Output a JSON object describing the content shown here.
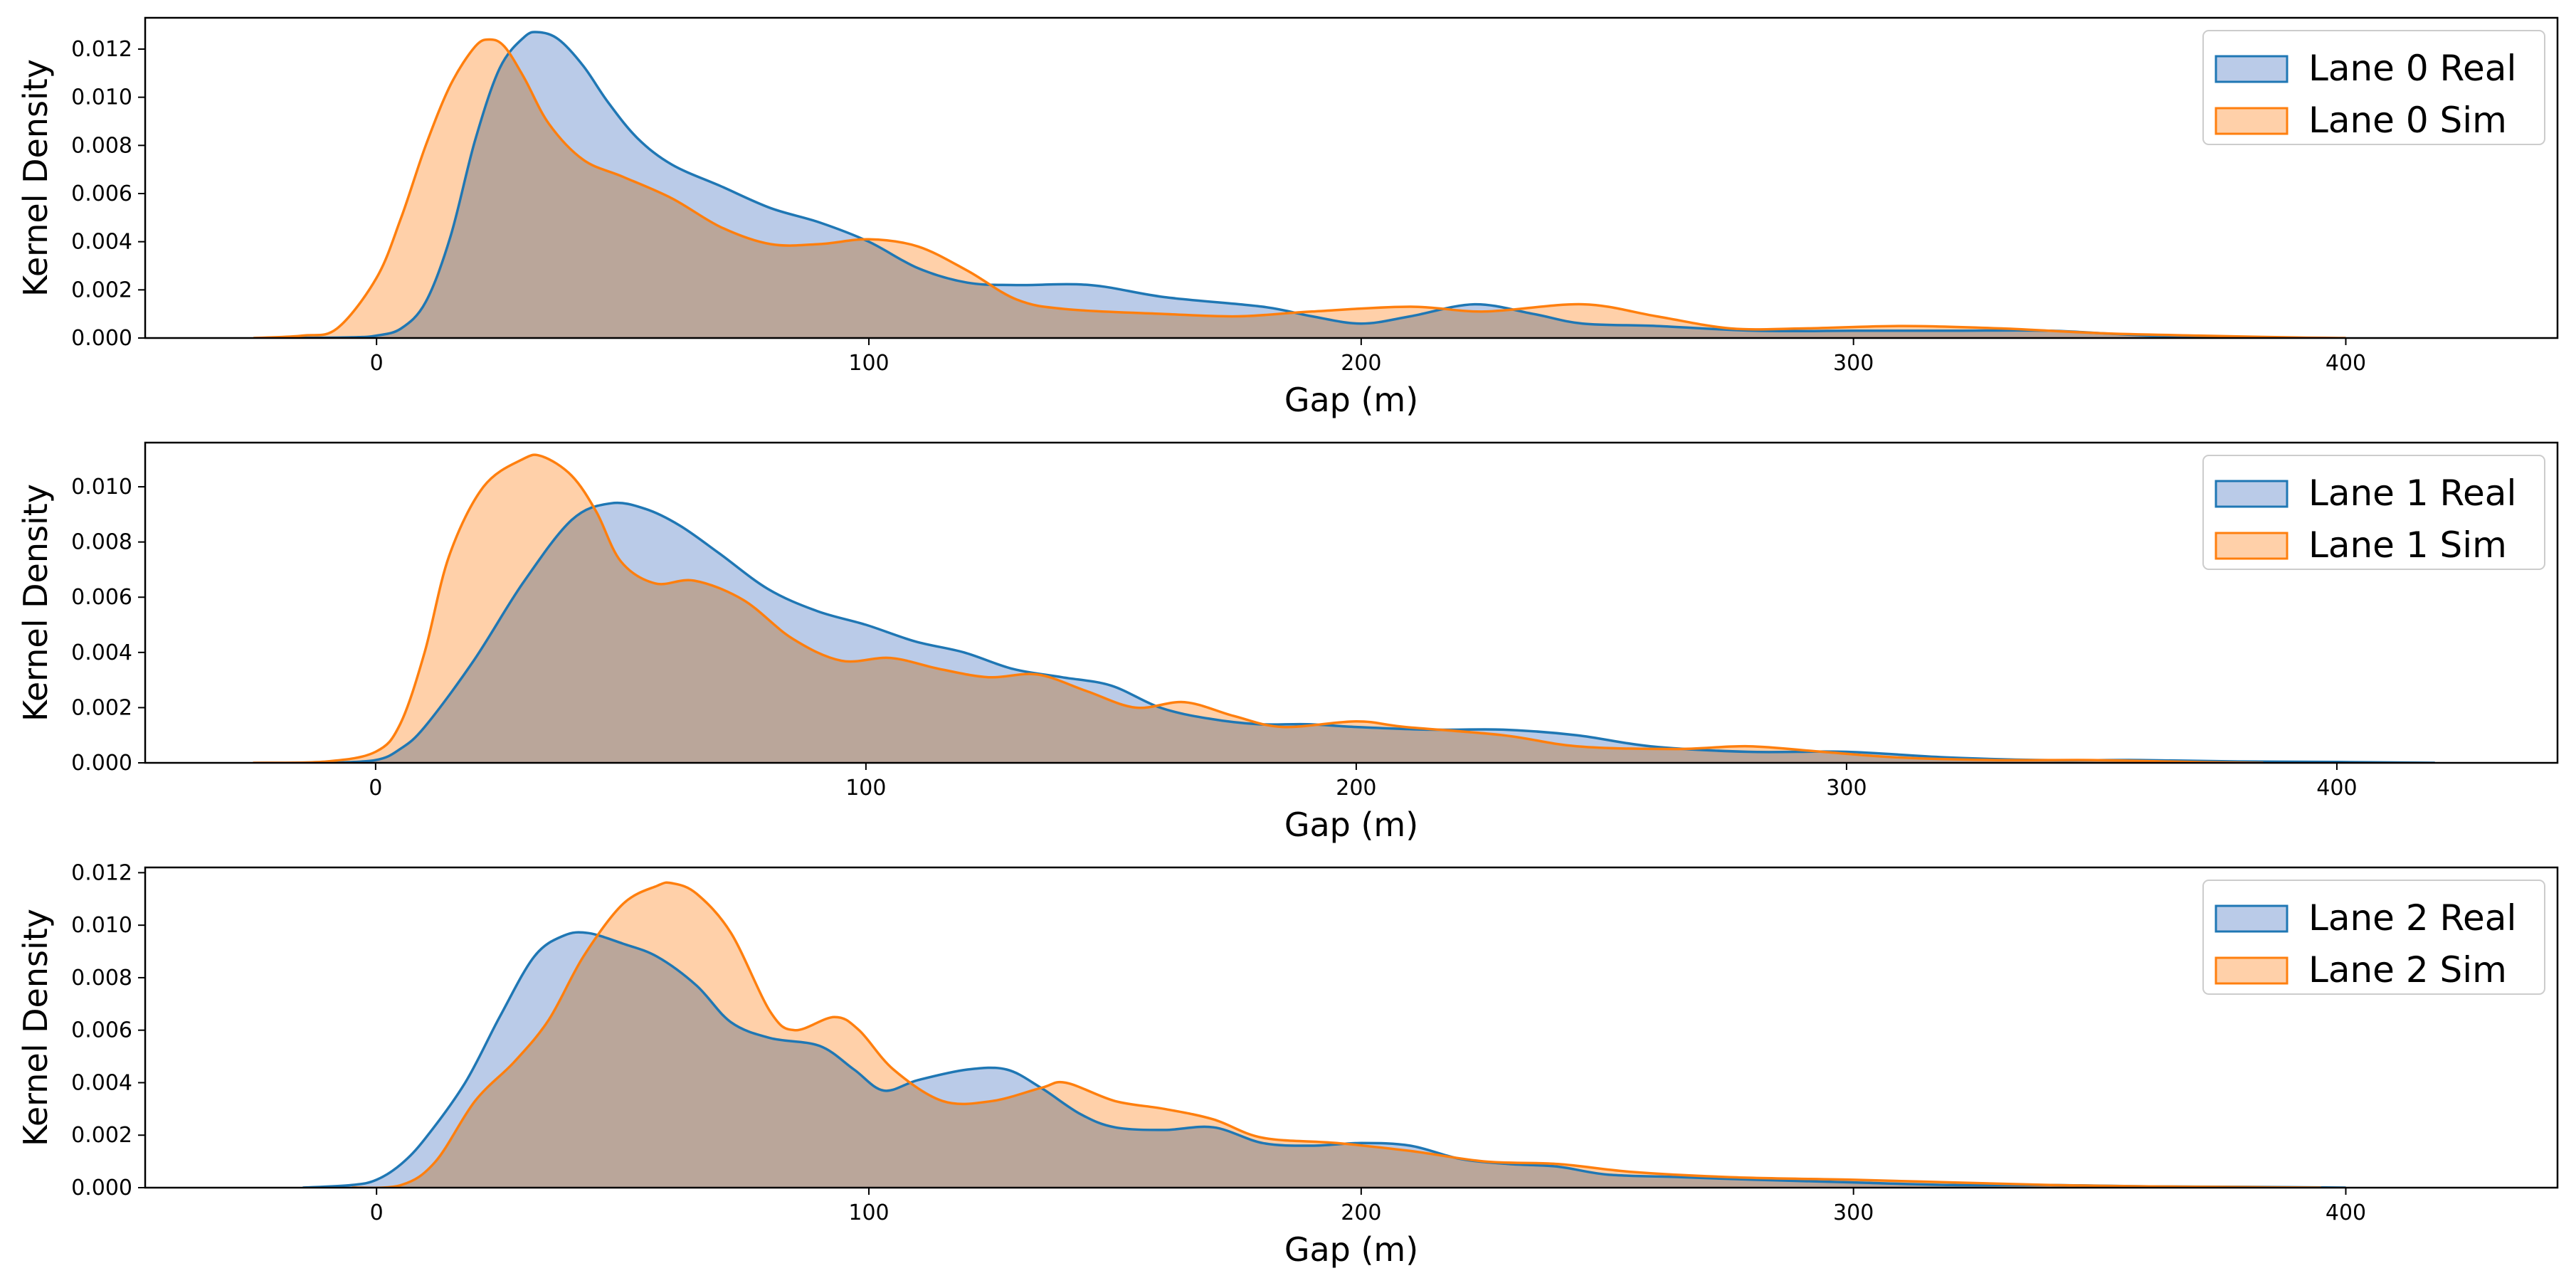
{
  "chart_data": [
    {
      "type": "area",
      "title": "",
      "xlabel": "Gap (m)",
      "ylabel": "Kernel Density",
      "xlim": [
        -47,
        443
      ],
      "ylim": [
        0,
        0.0133
      ],
      "xticks": [
        0,
        100,
        200,
        300,
        400
      ],
      "xtick_labels": [
        "0",
        "100",
        "200",
        "300",
        "400"
      ],
      "yticks": [
        0,
        0.002,
        0.004,
        0.006,
        0.008,
        0.01,
        0.012
      ],
      "ytick_labels": [
        "0.000",
        "0.002",
        "0.004",
        "0.006",
        "0.008",
        "0.010",
        "0.012"
      ],
      "legend_position": "top-right",
      "series": [
        {
          "name": "Lane 0 Real",
          "color": "#1f77b4",
          "fill": "#aec2e4",
          "points": [
            [
              -17,
              0
            ],
            [
              -5,
              3e-05
            ],
            [
              0,
              0.0001
            ],
            [
              5,
              0.0004
            ],
            [
              10,
              0.0015
            ],
            [
              15,
              0.0042
            ],
            [
              20,
              0.0082
            ],
            [
              25,
              0.0112
            ],
            [
              30,
              0.0125
            ],
            [
              33,
              0.0127
            ],
            [
              37,
              0.0124
            ],
            [
              42,
              0.0113
            ],
            [
              47,
              0.0098
            ],
            [
              53,
              0.0083
            ],
            [
              60,
              0.0072
            ],
            [
              70,
              0.0063
            ],
            [
              80,
              0.0054
            ],
            [
              90,
              0.0048
            ],
            [
              100,
              0.004
            ],
            [
              110,
              0.0029
            ],
            [
              120,
              0.0023
            ],
            [
              130,
              0.0022
            ],
            [
              145,
              0.0022
            ],
            [
              160,
              0.0017
            ],
            [
              180,
              0.0013
            ],
            [
              190,
              0.0009
            ],
            [
              200,
              0.0006
            ],
            [
              210,
              0.0009
            ],
            [
              223,
              0.0014
            ],
            [
              235,
              0.001
            ],
            [
              245,
              0.0006
            ],
            [
              260,
              0.0005
            ],
            [
              280,
              0.0003
            ],
            [
              300,
              0.0003
            ],
            [
              320,
              0.0003
            ],
            [
              340,
              0.0003
            ],
            [
              360,
              0.0001
            ],
            [
              380,
              3e-05
            ],
            [
              393,
              0
            ]
          ]
        },
        {
          "name": "Lane 0 Sim",
          "color": "#ff7f0e",
          "fill": "#ffc89a",
          "points": [
            [
              -25,
              0
            ],
            [
              -15,
              0.0001
            ],
            [
              -8,
              0.0004
            ],
            [
              0,
              0.0025
            ],
            [
              5,
              0.005
            ],
            [
              10,
              0.008
            ],
            [
              15,
              0.0105
            ],
            [
              20,
              0.0121
            ],
            [
              23,
              0.0124
            ],
            [
              26,
              0.0121
            ],
            [
              30,
              0.0108
            ],
            [
              35,
              0.0089
            ],
            [
              42,
              0.0074
            ],
            [
              50,
              0.0067
            ],
            [
              60,
              0.0058
            ],
            [
              70,
              0.0046
            ],
            [
              80,
              0.0039
            ],
            [
              90,
              0.0039
            ],
            [
              100,
              0.0041
            ],
            [
              110,
              0.0038
            ],
            [
              120,
              0.0028
            ],
            [
              130,
              0.0016
            ],
            [
              140,
              0.0012
            ],
            [
              160,
              0.001
            ],
            [
              175,
              0.0009
            ],
            [
              190,
              0.0011
            ],
            [
              210,
              0.0013
            ],
            [
              225,
              0.0011
            ],
            [
              245,
              0.0014
            ],
            [
              260,
              0.0009
            ],
            [
              275,
              0.0004
            ],
            [
              290,
              0.0004
            ],
            [
              310,
              0.0005
            ],
            [
              330,
              0.0004
            ],
            [
              350,
              0.0002
            ],
            [
              370,
              0.0001
            ],
            [
              390,
              2e-05
            ],
            [
              400,
              0
            ]
          ]
        }
      ]
    },
    {
      "type": "area",
      "title": "",
      "xlabel": "Gap (m)",
      "ylabel": "Kernel Density",
      "xlim": [
        -47,
        445
      ],
      "ylim": [
        0,
        0.0116
      ],
      "xticks": [
        0,
        100,
        200,
        300,
        400
      ],
      "xtick_labels": [
        "0",
        "100",
        "200",
        "300",
        "400"
      ],
      "yticks": [
        0,
        0.002,
        0.004,
        0.006,
        0.008,
        0.01
      ],
      "ytick_labels": [
        "0.000",
        "0.002",
        "0.004",
        "0.006",
        "0.008",
        "0.010"
      ],
      "legend_position": "top-right",
      "series": [
        {
          "name": "Lane 1 Real",
          "color": "#1f77b4",
          "fill": "#aec2e4",
          "points": [
            [
              -10,
              0
            ],
            [
              0,
              0.0001
            ],
            [
              5,
              0.0005
            ],
            [
              10,
              0.0013
            ],
            [
              20,
              0.0037
            ],
            [
              30,
              0.0065
            ],
            [
              40,
              0.0088
            ],
            [
              48,
              0.0094
            ],
            [
              55,
              0.0092
            ],
            [
              62,
              0.0086
            ],
            [
              70,
              0.0076
            ],
            [
              80,
              0.0063
            ],
            [
              90,
              0.0055
            ],
            [
              100,
              0.005
            ],
            [
              110,
              0.0044
            ],
            [
              120,
              0.004
            ],
            [
              130,
              0.0034
            ],
            [
              140,
              0.0031
            ],
            [
              150,
              0.0028
            ],
            [
              160,
              0.002
            ],
            [
              170,
              0.0016
            ],
            [
              180,
              0.0014
            ],
            [
              190,
              0.0014
            ],
            [
              200,
              0.0013
            ],
            [
              215,
              0.0012
            ],
            [
              230,
              0.0012
            ],
            [
              245,
              0.001
            ],
            [
              260,
              0.0006
            ],
            [
              280,
              0.0004
            ],
            [
              300,
              0.0004
            ],
            [
              320,
              0.0002
            ],
            [
              340,
              0.0001
            ],
            [
              360,
              0.0001
            ],
            [
              380,
              5e-05
            ],
            [
              400,
              3e-05
            ],
            [
              420,
              0
            ]
          ]
        },
        {
          "name": "Lane 1 Sim",
          "color": "#ff7f0e",
          "fill": "#ffc89a",
          "points": [
            [
              -25,
              0
            ],
            [
              -10,
              5e-05
            ],
            [
              0,
              0.0004
            ],
            [
              5,
              0.0014
            ],
            [
              10,
              0.004
            ],
            [
              15,
              0.0075
            ],
            [
              22,
              0.01
            ],
            [
              30,
              0.011
            ],
            [
              34,
              0.0111
            ],
            [
              40,
              0.0104
            ],
            [
              45,
              0.0091
            ],
            [
              50,
              0.0073
            ],
            [
              57,
              0.0065
            ],
            [
              65,
              0.0066
            ],
            [
              75,
              0.0059
            ],
            [
              85,
              0.0045
            ],
            [
              95,
              0.0037
            ],
            [
              105,
              0.0038
            ],
            [
              115,
              0.0034
            ],
            [
              125,
              0.0031
            ],
            [
              135,
              0.0032
            ],
            [
              145,
              0.0026
            ],
            [
              155,
              0.002
            ],
            [
              165,
              0.0022
            ],
            [
              175,
              0.0017
            ],
            [
              185,
              0.0013
            ],
            [
              200,
              0.0015
            ],
            [
              210,
              0.0013
            ],
            [
              230,
              0.001
            ],
            [
              245,
              0.0006
            ],
            [
              265,
              0.0005
            ],
            [
              280,
              0.0006
            ],
            [
              295,
              0.0004
            ],
            [
              310,
              0.0002
            ],
            [
              330,
              0.0001
            ],
            [
              350,
              0.0001
            ],
            [
              370,
              3e-05
            ],
            [
              385,
              0
            ]
          ]
        }
      ]
    },
    {
      "type": "area",
      "title": "",
      "xlabel": "Gap (m)",
      "ylabel": "Kernel Density",
      "xlim": [
        -47,
        443
      ],
      "ylim": [
        0,
        0.0122
      ],
      "xticks": [
        0,
        100,
        200,
        300,
        400
      ],
      "xtick_labels": [
        "0",
        "100",
        "200",
        "300",
        "400"
      ],
      "yticks": [
        0,
        0.002,
        0.004,
        0.006,
        0.008,
        0.01,
        0.012
      ],
      "ytick_labels": [
        "0.000",
        "0.002",
        "0.004",
        "0.006",
        "0.008",
        "0.010",
        "0.012"
      ],
      "legend_position": "top-right",
      "series": [
        {
          "name": "Lane 2 Real",
          "color": "#1f77b4",
          "fill": "#aec2e4",
          "points": [
            [
              -15,
              0
            ],
            [
              -5,
              0.0001
            ],
            [
              0,
              0.0003
            ],
            [
              5,
              0.0009
            ],
            [
              10,
              0.0019
            ],
            [
              18,
              0.004
            ],
            [
              25,
              0.0065
            ],
            [
              32,
              0.0088
            ],
            [
              38,
              0.0096
            ],
            [
              43,
              0.0097
            ],
            [
              50,
              0.0093
            ],
            [
              57,
              0.0088
            ],
            [
              65,
              0.0077
            ],
            [
              72,
              0.0063
            ],
            [
              80,
              0.0057
            ],
            [
              90,
              0.0054
            ],
            [
              97,
              0.0045
            ],
            [
              103,
              0.0037
            ],
            [
              110,
              0.0041
            ],
            [
              120,
              0.0045
            ],
            [
              128,
              0.0045
            ],
            [
              135,
              0.0038
            ],
            [
              143,
              0.0028
            ],
            [
              150,
              0.0023
            ],
            [
              160,
              0.0022
            ],
            [
              170,
              0.0023
            ],
            [
              180,
              0.0017
            ],
            [
              190,
              0.0016
            ],
            [
              200,
              0.0017
            ],
            [
              210,
              0.0016
            ],
            [
              220,
              0.0011
            ],
            [
              230,
              0.0009
            ],
            [
              240,
              0.0008
            ],
            [
              250,
              0.0005
            ],
            [
              265,
              0.0004
            ],
            [
              280,
              0.0003
            ],
            [
              300,
              0.0002
            ],
            [
              320,
              0.0001
            ],
            [
              340,
              0.0001
            ],
            [
              360,
              5e-05
            ],
            [
              380,
              3e-05
            ],
            [
              400,
              0
            ]
          ]
        },
        {
          "name": "Lane 2 Sim",
          "color": "#ff7f0e",
          "fill": "#ffc89a",
          "points": [
            [
              -5,
              0
            ],
            [
              5,
              0.0001
            ],
            [
              12,
              0.001
            ],
            [
              20,
              0.0033
            ],
            [
              28,
              0.0048
            ],
            [
              35,
              0.0064
            ],
            [
              42,
              0.0088
            ],
            [
              50,
              0.0108
            ],
            [
              57,
              0.0115
            ],
            [
              60,
              0.0116
            ],
            [
              65,
              0.0112
            ],
            [
              72,
              0.0097
            ],
            [
              80,
              0.0067
            ],
            [
              85,
              0.006
            ],
            [
              93,
              0.0065
            ],
            [
              98,
              0.006
            ],
            [
              105,
              0.0045
            ],
            [
              115,
              0.0033
            ],
            [
              125,
              0.0033
            ],
            [
              135,
              0.0038
            ],
            [
              140,
              0.004
            ],
            [
              150,
              0.0033
            ],
            [
              160,
              0.003
            ],
            [
              170,
              0.0026
            ],
            [
              180,
              0.0019
            ],
            [
              195,
              0.0017
            ],
            [
              210,
              0.0014
            ],
            [
              225,
              0.001
            ],
            [
              240,
              0.0009
            ],
            [
              255,
              0.0006
            ],
            [
              275,
              0.0004
            ],
            [
              300,
              0.0003
            ],
            [
              320,
              0.0002
            ],
            [
              340,
              0.0001
            ],
            [
              360,
              5e-05
            ],
            [
              380,
              2e-05
            ],
            [
              395,
              0
            ]
          ]
        }
      ]
    }
  ]
}
